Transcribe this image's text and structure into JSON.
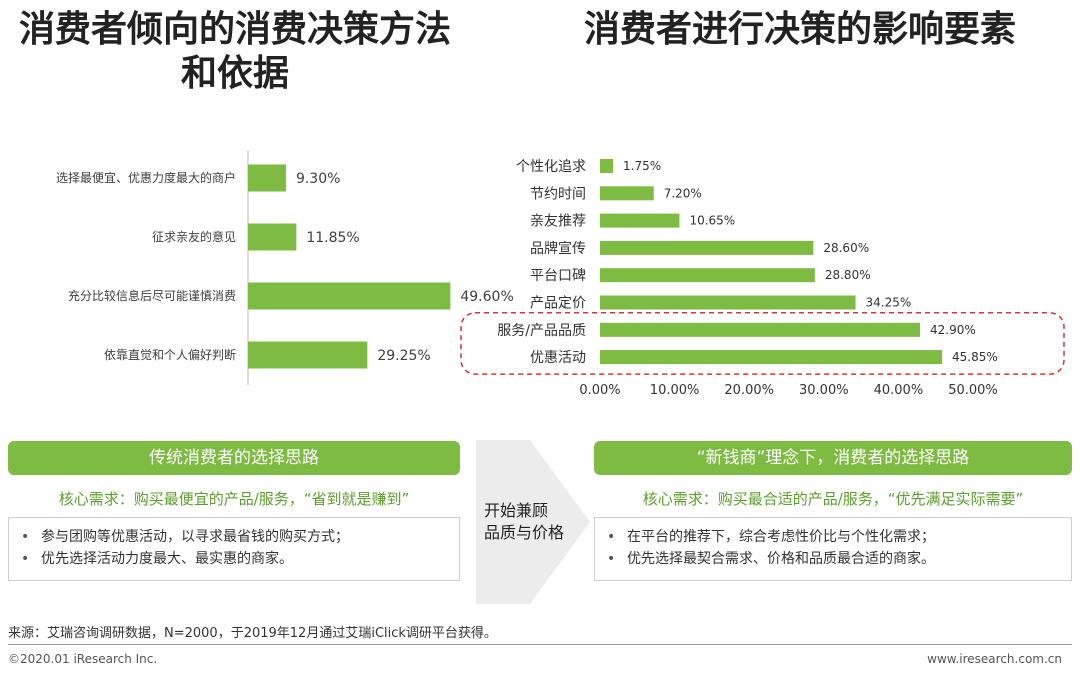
{
  "titles": {
    "left": "消费者倾向的消费决策方法和依据",
    "right": "消费者进行决策的影响要素"
  },
  "chart_data": [
    {
      "type": "bar",
      "orientation": "horizontal",
      "categories": [
        "选择最便宜、优惠力度最大的商户",
        "征求亲友的意见",
        "充分比较信息后尽可能谨慎消费",
        "依靠直觉和个人偏好判断"
      ],
      "values": [
        9.3,
        11.85,
        49.6,
        29.25
      ],
      "value_labels": [
        "9.30%",
        "11.85%",
        "49.60%",
        "29.25%"
      ],
      "unit": "%",
      "color": "#7dbb42"
    },
    {
      "type": "bar",
      "orientation": "horizontal",
      "categories": [
        "个性化追求",
        "节约时间",
        "亲友推荐",
        "品牌宣传",
        "平台口碑",
        "产品定价",
        "服务/产品品质",
        "优惠活动"
      ],
      "values": [
        1.75,
        7.2,
        10.65,
        28.6,
        28.8,
        34.25,
        42.9,
        45.85
      ],
      "value_labels": [
        "1.75%",
        "7.20%",
        "10.65%",
        "28.60%",
        "28.80%",
        "34.25%",
        "42.90%",
        "45.85%"
      ],
      "xlim": [
        0,
        50
      ],
      "xticks": [
        "0.00%",
        "10.00%",
        "20.00%",
        "30.00%",
        "40.00%",
        "50.00%"
      ],
      "highlighted_categories": [
        "服务/产品品质",
        "优惠活动"
      ],
      "highlight_color": "#e03030",
      "color": "#7dbb42"
    }
  ],
  "left_panel": {
    "header": "传统消费者的选择思路",
    "core": "核心需求：购买最便宜的产品/服务，“省到就是赚到”",
    "bullets": [
      "参与团购等优惠活动，以寻求最省钱的购买方式；",
      "优先选择活动力度最大、最实惠的商家。"
    ]
  },
  "arrow": {
    "line1": "开始兼顾",
    "line2": "品质与价格"
  },
  "right_panel": {
    "header": "“新钱商”理念下，消费者的选择思路",
    "core": "核心需求：购买最合适的产品/服务，“优先满足实际需要”",
    "bullets": [
      "在平台的推荐下，综合考虑性价比与个性化需求；",
      "优先选择最契合需求、价格和品质最合适的商家。"
    ]
  },
  "source": "来源：艾瑞咨询调研数据，N=2000，于2019年12月通过艾瑞iClick调研平台获得。",
  "footer": {
    "left": "©2020.01 iResearch Inc.",
    "right": "www.iresearch.com.cn"
  },
  "colors": {
    "accent": "#7dbb42",
    "core_text": "#5aa02c"
  }
}
